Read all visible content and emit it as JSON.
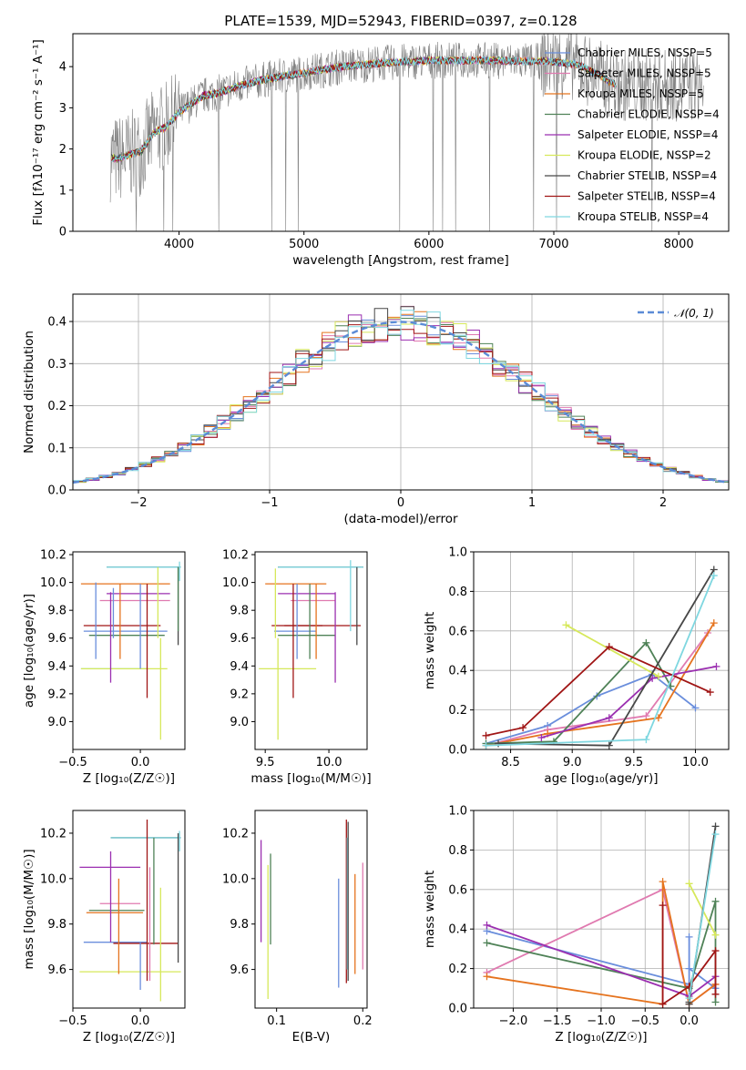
{
  "title": "PLATE=1539, MJD=52943, FIBERID=0397, z=0.128",
  "colors": {
    "series": [
      "#6a8edc",
      "#e07ab0",
      "#e5731e",
      "#4f8257",
      "#9b2fb0",
      "#d6e85a",
      "#474747",
      "#a01515",
      "#7fd7e0"
    ],
    "observed": "#808080",
    "grid": "#b0b0b0"
  },
  "chart_data": [
    {
      "id": "spectrum",
      "type": "line",
      "xlabel": "wavelength [Angstrom, rest frame]",
      "ylabel": "Flux [fλ10⁻¹⁷ erg cm⁻² s⁻¹ A⁻¹]",
      "xlim": [
        3150,
        8400
      ],
      "ylim": [
        0,
        4.8
      ],
      "xticks": [
        4000,
        5000,
        6000,
        7000,
        8000
      ],
      "yticks": [
        0,
        1,
        2,
        3,
        4
      ],
      "grid": false,
      "legend": "top-right",
      "legend_entries": [
        "Chabrier MILES, NSSP=5",
        "Salpeter MILES, NSSP=5",
        "Kroupa MILES, NSSP=5",
        "Chabrier ELODIE, NSSP=4",
        "Salpeter ELODIE, NSSP=4",
        "Kroupa ELODIE, NSSP=2",
        "Chabrier STELIB, NSSP=4",
        "Salpeter STELIB, NSSP=4",
        "Kroupa STELIB, NSSP=4"
      ],
      "model_continuum": {
        "x": [
          3450,
          3500,
          3600,
          3700,
          3800,
          3900,
          4000,
          4100,
          4200,
          4300,
          4500,
          4700,
          5000,
          5300,
          5600,
          6000,
          6500,
          7000,
          7200,
          7500
        ],
        "y": [
          1.8,
          1.75,
          1.85,
          1.95,
          2.4,
          2.55,
          2.9,
          3.1,
          3.3,
          3.35,
          3.55,
          3.7,
          3.85,
          4.0,
          4.08,
          4.15,
          4.15,
          4.12,
          4.05,
          3.55
        ]
      },
      "observed_range": [
        3450,
        8200
      ]
    },
    {
      "id": "residuals",
      "type": "step",
      "xlabel": "(data-model)/error",
      "ylabel": "Normed distribution",
      "xlim": [
        -2.5,
        2.5
      ],
      "ylim": [
        0,
        0.465
      ],
      "xticks": [
        -2,
        -1,
        0,
        1,
        2
      ],
      "yticks": [
        0.0,
        0.1,
        0.2,
        0.3,
        0.4
      ],
      "grid": true,
      "legend": "top-right",
      "legend_entries": [
        "𝒩(0, 1)"
      ],
      "bin_width": 0.1,
      "reference": {
        "name": "𝒩(0, 1)",
        "mean": 0,
        "sigma": 1,
        "style": "dashed"
      }
    },
    {
      "id": "age-vs-z",
      "type": "errorbar",
      "xlabel": "Z [log₁₀(Z/Z☉)]",
      "ylabel": "age  [log₁₀(age/yr)]",
      "xlim": [
        -0.5,
        0.33
      ],
      "ylim": [
        8.8,
        10.22
      ],
      "xticks": [
        -0.5,
        0.0
      ],
      "yticks": [
        9.0,
        9.2,
        9.4,
        9.6,
        9.8,
        10.0,
        10.2
      ],
      "horizontal": [
        [
          -0.44,
          0.05,
          9.38,
          8
        ],
        [
          -0.44,
          0.2,
          9.38,
          5
        ],
        [
          -0.42,
          0.2,
          9.65,
          0
        ],
        [
          -0.38,
          0.18,
          9.62,
          3
        ],
        [
          -0.42,
          0.15,
          9.69,
          7
        ],
        [
          -0.25,
          0.3,
          10.11,
          6
        ],
        [
          -0.25,
          0.3,
          10.11,
          8
        ],
        [
          -0.25,
          0.22,
          9.92,
          4
        ],
        [
          -0.3,
          0.22,
          9.87,
          1
        ],
        [
          -0.44,
          0.22,
          9.99,
          2
        ]
      ],
      "vertical": [
        [
          -0.33,
          9.45,
          10.0,
          0
        ],
        [
          -0.2,
          9.6,
          9.96,
          0
        ],
        [
          -0.15,
          9.45,
          9.99,
          2
        ],
        [
          -0.22,
          9.28,
          9.93,
          4
        ],
        [
          0.0,
          9.38,
          9.99,
          0
        ],
        [
          0.05,
          9.17,
          9.99,
          7
        ],
        [
          0.13,
          9.6,
          10.11,
          5
        ],
        [
          0.15,
          8.87,
          9.6,
          5
        ],
        [
          0.28,
          9.55,
          10.11,
          6
        ],
        [
          0.28,
          9.65,
          10.11,
          3
        ],
        [
          0.29,
          10.01,
          10.15,
          8
        ]
      ]
    },
    {
      "id": "age-vs-mass",
      "type": "errorbar",
      "xlabel": "mass [log₁₀(M/M☉)]",
      "ylabel": "",
      "xlim": [
        9.42,
        10.3
      ],
      "ylim": [
        8.8,
        10.22
      ],
      "xticks": [
        9.5,
        10.0
      ],
      "yticks": [
        9.0,
        9.2,
        9.4,
        9.6,
        9.8,
        10.0,
        10.2
      ],
      "horizontal": [
        [
          9.6,
          10.27,
          10.11,
          6
        ],
        [
          9.6,
          10.27,
          10.11,
          8
        ],
        [
          9.5,
          9.98,
          9.99,
          2
        ],
        [
          9.7,
          10.05,
          9.87,
          1
        ],
        [
          9.55,
          9.95,
          9.69,
          7
        ],
        [
          9.65,
          10.25,
          9.69,
          7
        ],
        [
          9.6,
          10.05,
          9.62,
          3
        ],
        [
          9.57,
          9.9,
          9.65,
          0
        ],
        [
          9.45,
          9.9,
          9.38,
          5
        ],
        [
          9.6,
          10.05,
          9.92,
          4
        ]
      ],
      "vertical": [
        [
          9.58,
          9.6,
          10.1,
          5
        ],
        [
          9.6,
          8.87,
          9.6,
          5
        ],
        [
          9.72,
          9.17,
          9.99,
          7
        ],
        [
          9.75,
          9.45,
          9.99,
          0
        ],
        [
          9.85,
          9.45,
          9.99,
          3
        ],
        [
          9.9,
          9.45,
          9.99,
          2
        ],
        [
          10.05,
          9.28,
          9.93,
          4
        ],
        [
          10.17,
          9.65,
          10.16,
          8
        ],
        [
          10.22,
          9.55,
          10.11,
          6
        ]
      ]
    },
    {
      "id": "weight-vs-age",
      "type": "line",
      "xlabel": "age  [log₁₀(age/yr)]",
      "ylabel": "mass weight",
      "xlim": [
        8.2,
        10.27
      ],
      "ylim": [
        0.0,
        1.0
      ],
      "xticks": [
        8.5,
        9.0,
        9.5,
        10.0
      ],
      "yticks": [
        0.0,
        0.2,
        0.4,
        0.6,
        0.8,
        1.0
      ],
      "grid": true,
      "series": [
        {
          "x": [
            8.3,
            8.8,
            9.2,
            9.65,
            10.0
          ],
          "y": [
            0.03,
            0.12,
            0.27,
            0.38,
            0.21
          ]
        },
        {
          "x": [
            8.3,
            8.8,
            9.6,
            10.1
          ],
          "y": [
            0.02,
            0.1,
            0.17,
            0.59
          ]
        },
        {
          "x": [
            8.3,
            8.8,
            9.7,
            10.15
          ],
          "y": [
            0.02,
            0.08,
            0.16,
            0.64
          ]
        },
        {
          "x": [
            8.3,
            8.85,
            9.6,
            9.8
          ],
          "y": [
            0.03,
            0.04,
            0.54,
            0.32
          ]
        },
        {
          "x": [
            8.75,
            9.3,
            9.65,
            10.17
          ],
          "y": [
            0.06,
            0.16,
            0.36,
            0.42
          ]
        },
        {
          "x": [
            8.95,
            9.7
          ],
          "y": [
            0.63,
            0.37
          ]
        },
        {
          "x": [
            8.4,
            9.3,
            10.15
          ],
          "y": [
            0.03,
            0.02,
            0.91
          ]
        },
        {
          "x": [
            8.3,
            8.6,
            9.3,
            10.12
          ],
          "y": [
            0.07,
            0.11,
            0.52,
            0.29
          ]
        },
        {
          "x": [
            8.3,
            9.6,
            10.15
          ],
          "y": [
            0.02,
            0.05,
            0.88
          ]
        }
      ]
    },
    {
      "id": "mass-vs-z",
      "type": "errorbar",
      "xlabel": "Z [log₁₀(Z/Z☉)]",
      "ylabel": "mass [log₁₀(M/M☉)]",
      "xlim": [
        -0.5,
        0.33
      ],
      "ylim": [
        9.43,
        10.3
      ],
      "xticks": [
        -0.5,
        0.0
      ],
      "yticks": [
        9.6,
        9.8,
        10.0,
        10.2
      ],
      "horizontal": [
        [
          -0.45,
          0.3,
          9.59,
          5
        ],
        [
          -0.42,
          0.05,
          9.72,
          0
        ],
        [
          -0.2,
          0.28,
          9.715,
          7
        ],
        [
          -0.45,
          0.0,
          10.05,
          4
        ],
        [
          -0.3,
          0.0,
          9.89,
          1
        ],
        [
          -0.4,
          0.02,
          9.85,
          2
        ],
        [
          -0.38,
          0.03,
          9.86,
          3
        ],
        [
          -0.22,
          0.3,
          10.18,
          6
        ],
        [
          -0.22,
          0.3,
          10.18,
          8
        ]
      ],
      "vertical": [
        [
          -0.16,
          9.58,
          10.0,
          2
        ],
        [
          -0.22,
          9.72,
          10.12,
          4
        ],
        [
          0.0,
          9.51,
          9.72,
          0
        ],
        [
          0.05,
          9.55,
          10.26,
          7
        ],
        [
          0.07,
          9.55,
          10.05,
          1
        ],
        [
          0.15,
          9.46,
          9.96,
          5
        ],
        [
          0.1,
          9.71,
          10.18,
          3
        ],
        [
          0.28,
          9.63,
          10.2,
          6
        ],
        [
          0.29,
          10.12,
          10.21,
          8
        ]
      ]
    },
    {
      "id": "mass-vs-ebv",
      "type": "errorbar",
      "xlabel": "E(B-V)",
      "ylabel": "",
      "xlim": [
        0.075,
        0.205
      ],
      "ylim": [
        9.43,
        10.3
      ],
      "xticks": [
        0.1,
        0.2
      ],
      "yticks": [
        9.6,
        9.8,
        10.0,
        10.2
      ],
      "vertical": [
        [
          0.082,
          9.72,
          10.17,
          4
        ],
        [
          0.09,
          9.47,
          10.06,
          5
        ],
        [
          0.093,
          9.71,
          10.11,
          3
        ],
        [
          0.172,
          9.52,
          10.0,
          0
        ],
        [
          0.181,
          9.54,
          10.26,
          7
        ],
        [
          0.182,
          9.6,
          10.18,
          8
        ],
        [
          0.183,
          9.55,
          10.25,
          6
        ],
        [
          0.191,
          9.58,
          10.02,
          2
        ],
        [
          0.2,
          9.6,
          10.07,
          1
        ]
      ]
    },
    {
      "id": "weight-vs-z",
      "type": "line",
      "xlabel": "Z [log₁₀(Z/Z☉)]",
      "ylabel": "mass weight",
      "xlim": [
        -2.45,
        0.45
      ],
      "ylim": [
        0.0,
        1.0
      ],
      "xticks": [
        -2.0,
        -1.5,
        -1.0,
        -0.5,
        0.0
      ],
      "yticks": [
        0.0,
        0.2,
        0.4,
        0.6,
        0.8,
        1.0
      ],
      "grid": true,
      "series": [
        {
          "x": [
            -2.3,
            0.0,
            0.0,
            0.0,
            0.3
          ],
          "y": [
            0.39,
            0.12,
            0.36,
            0.2,
            0.1
          ]
        },
        {
          "x": [
            -2.3,
            -0.3,
            0.0,
            0.3
          ],
          "y": [
            0.18,
            0.6,
            0.02,
            0.12
          ]
        },
        {
          "x": [
            -2.3,
            -0.3,
            -0.3,
            0.0,
            0.3
          ],
          "y": [
            0.16,
            0.02,
            0.64,
            0.02,
            0.12
          ]
        },
        {
          "x": [
            -2.3,
            0.0,
            0.3,
            0.3
          ],
          "y": [
            0.33,
            0.1,
            0.54,
            0.03
          ]
        },
        {
          "x": [
            -2.3,
            0.0,
            0.3
          ],
          "y": [
            0.42,
            0.06,
            0.16
          ]
        },
        {
          "x": [
            0.0,
            0.3
          ],
          "y": [
            0.63,
            0.37
          ]
        },
        {
          "x": [
            0.0,
            0.0,
            0.3
          ],
          "y": [
            0.02,
            0.03,
            0.92
          ]
        },
        {
          "x": [
            -0.3,
            -0.3,
            0.0,
            0.3,
            0.3
          ],
          "y": [
            0.52,
            0.02,
            0.11,
            0.29,
            0.07
          ]
        },
        {
          "x": [
            0.0,
            0.3
          ],
          "y": [
            0.05,
            0.88
          ]
        }
      ]
    }
  ]
}
